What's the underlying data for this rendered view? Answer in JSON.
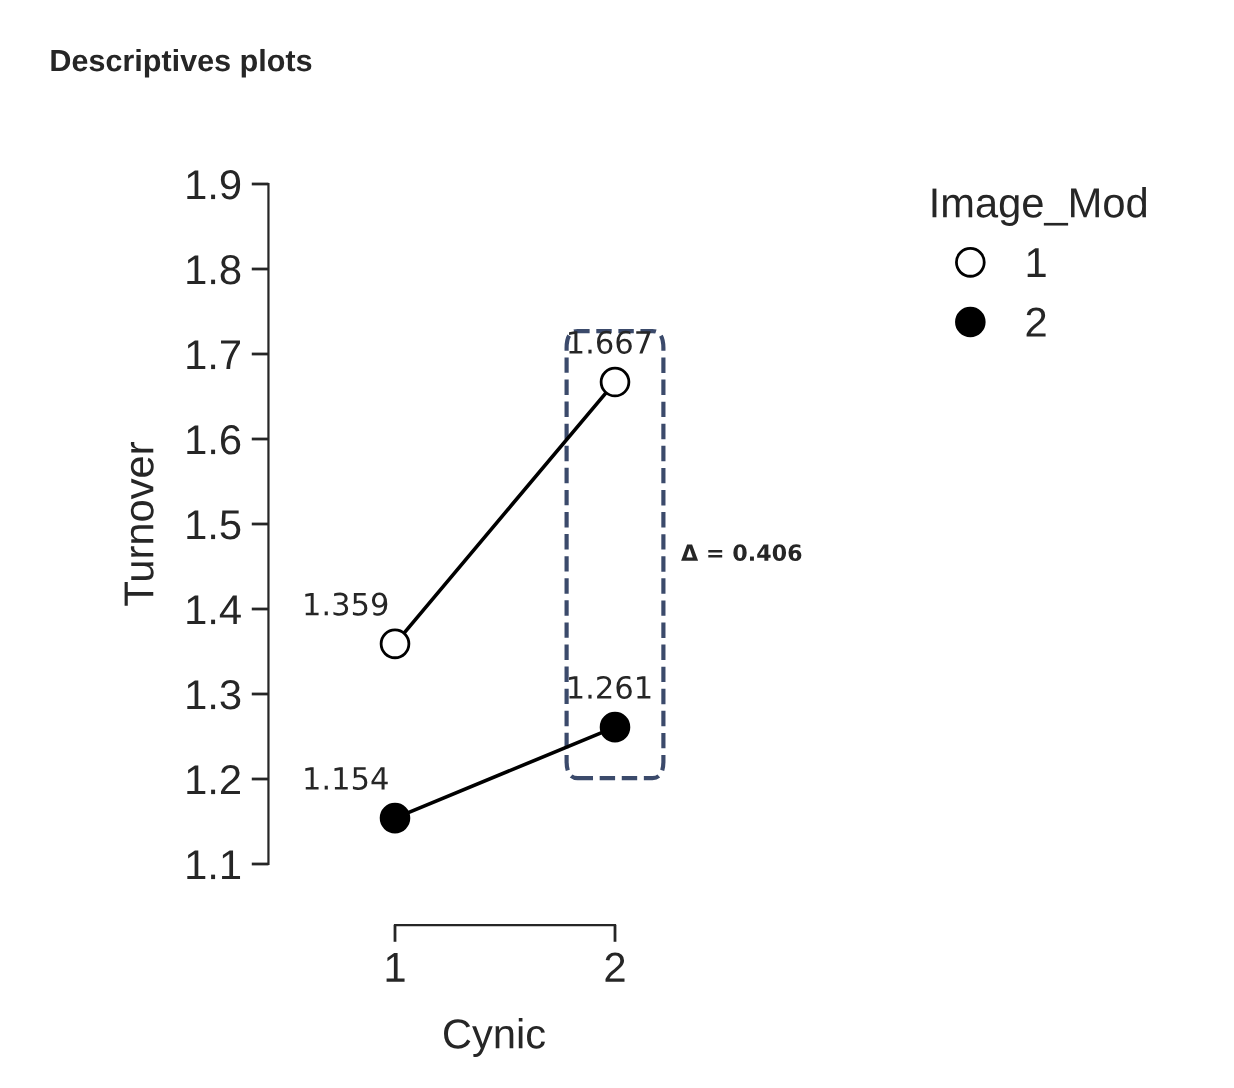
{
  "chart_data": {
    "type": "line",
    "title": "Descriptives plots",
    "xlabel": "Cynic",
    "ylabel": "Turnover",
    "legend_title": "Image_Mod",
    "categories": [
      "1",
      "2"
    ],
    "series": [
      {
        "name": "1",
        "color": "#ffffff",
        "values": [
          1.359,
          1.667
        ]
      },
      {
        "name": "2",
        "color": "#000000",
        "values": [
          1.154,
          1.261
        ]
      }
    ],
    "ylim": [
      1.1,
      1.9
    ],
    "yticks": [
      1.1,
      1.2,
      1.3,
      1.4,
      1.5,
      1.6,
      1.7,
      1.8,
      1.9
    ],
    "data_labels": true,
    "legend": "top right",
    "marker": "circle",
    "line_style": "solid",
    "grid": false,
    "annotations": [
      "Δ = 0.406"
    ]
  }
}
